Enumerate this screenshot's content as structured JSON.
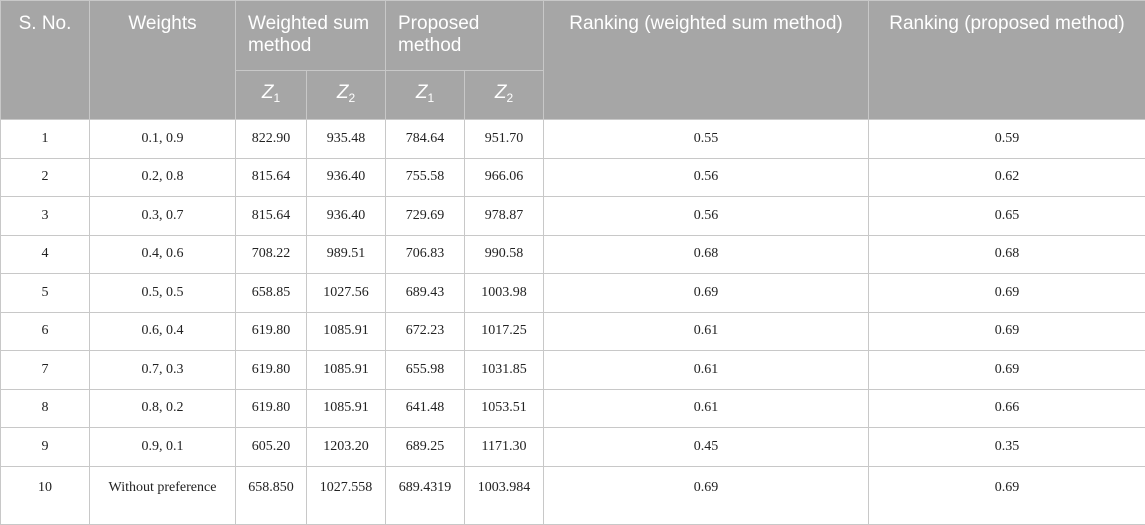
{
  "headers": {
    "sno": "S. No.",
    "weights": "Weights",
    "wsm": "Weighted sum method",
    "proposed": "Proposed method",
    "rank_wsm": "Ranking (weighted sum method)",
    "rank_proposed": "Ranking (proposed method)",
    "z_symbol": "Z",
    "z1_sub": "1",
    "z2_sub": "2"
  },
  "rows": [
    {
      "sno": "1",
      "weights": "0.1, 0.9",
      "wsm_z1": "822.90",
      "wsm_z2": "935.48",
      "prop_z1": "784.64",
      "prop_z2": "951.70",
      "rank_wsm": "0.55",
      "rank_prop": "0.59"
    },
    {
      "sno": "2",
      "weights": "0.2, 0.8",
      "wsm_z1": "815.64",
      "wsm_z2": "936.40",
      "prop_z1": "755.58",
      "prop_z2": "966.06",
      "rank_wsm": "0.56",
      "rank_prop": "0.62"
    },
    {
      "sno": "3",
      "weights": "0.3, 0.7",
      "wsm_z1": "815.64",
      "wsm_z2": "936.40",
      "prop_z1": "729.69",
      "prop_z2": "978.87",
      "rank_wsm": "0.56",
      "rank_prop": "0.65"
    },
    {
      "sno": "4",
      "weights": "0.4, 0.6",
      "wsm_z1": "708.22",
      "wsm_z2": "989.51",
      "prop_z1": "706.83",
      "prop_z2": "990.58",
      "rank_wsm": "0.68",
      "rank_prop": "0.68"
    },
    {
      "sno": "5",
      "weights": "0.5, 0.5",
      "wsm_z1": "658.85",
      "wsm_z2": "1027.56",
      "prop_z1": "689.43",
      "prop_z2": "1003.98",
      "rank_wsm": "0.69",
      "rank_prop": "0.69"
    },
    {
      "sno": "6",
      "weights": "0.6, 0.4",
      "wsm_z1": "619.80",
      "wsm_z2": "1085.91",
      "prop_z1": "672.23",
      "prop_z2": "1017.25",
      "rank_wsm": "0.61",
      "rank_prop": "0.69"
    },
    {
      "sno": "7",
      "weights": "0.7, 0.3",
      "wsm_z1": "619.80",
      "wsm_z2": "1085.91",
      "prop_z1": "655.98",
      "prop_z2": "1031.85",
      "rank_wsm": "0.61",
      "rank_prop": "0.69"
    },
    {
      "sno": "8",
      "weights": "0.8, 0.2",
      "wsm_z1": "619.80",
      "wsm_z2": "1085.91",
      "prop_z1": "641.48",
      "prop_z2": "1053.51",
      "rank_wsm": "0.61",
      "rank_prop": "0.66"
    },
    {
      "sno": "9",
      "weights": "0.9, 0.1",
      "wsm_z1": "605.20",
      "wsm_z2": "1203.20",
      "prop_z1": "689.25",
      "prop_z2": "1171.30",
      "rank_wsm": "0.45",
      "rank_prop": "0.35"
    },
    {
      "sno": "10",
      "weights": "Without preference",
      "wsm_z1": "658.850",
      "wsm_z2": "1027.558",
      "prop_z1": "689.4319",
      "prop_z2": "1003.984",
      "rank_wsm": "0.69",
      "rank_prop": "0.69"
    }
  ]
}
